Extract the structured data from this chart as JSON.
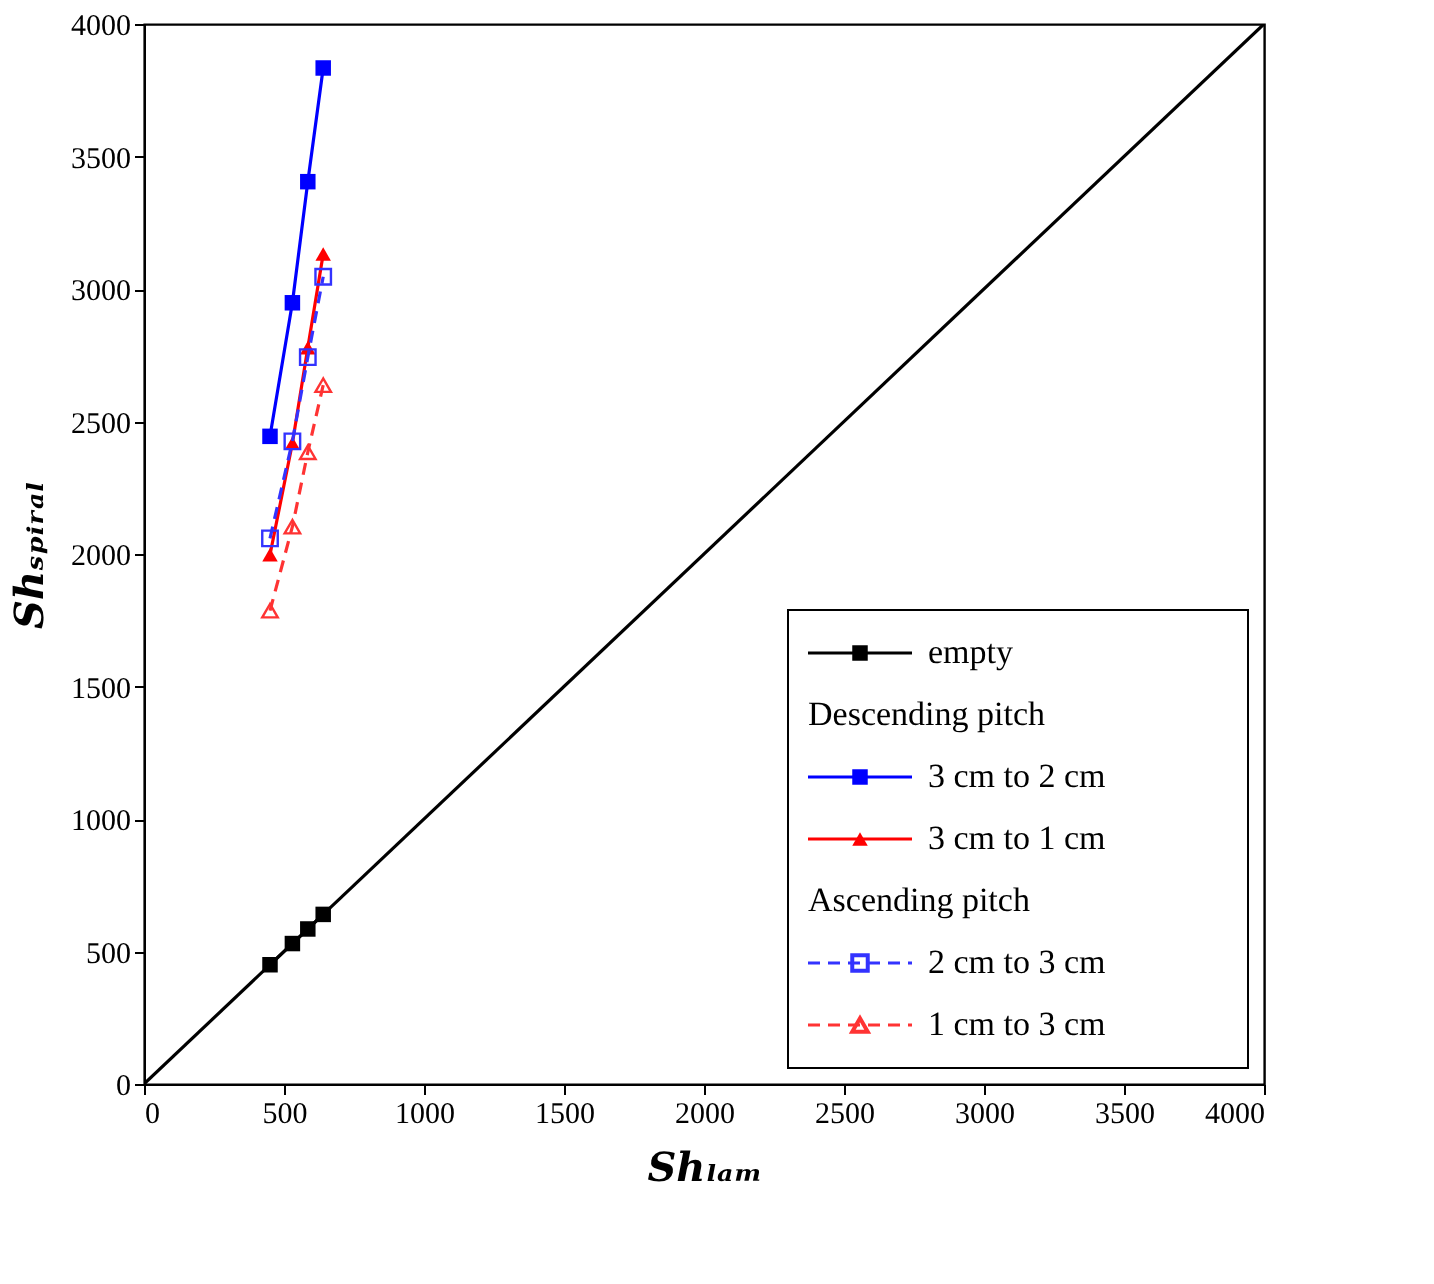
{
  "chart_data": {
    "type": "line",
    "xlabel": "Shₗₐₘ",
    "ylabel": "Shₛₚᵢᵣₐₗ",
    "xlim": [
      0,
      4000
    ],
    "ylim": [
      0,
      4000
    ],
    "xticks": [
      0,
      500,
      1000,
      1500,
      2000,
      2500,
      3000,
      3500,
      4000
    ],
    "yticks": [
      0,
      500,
      1000,
      1500,
      2000,
      2500,
      3000,
      3500,
      4000
    ],
    "grid": false,
    "legend": "bottom right",
    "annotations": [
      "Descending pitch",
      "Ascending pitch"
    ],
    "series": [
      {
        "type": "line",
        "color": "#000000",
        "x": [
          0,
          4000
        ],
        "values": [
          0,
          4000
        ],
        "marker": "none",
        "line_style": "solid"
      },
      {
        "name": "empty",
        "color": "#000000",
        "x": [
          450,
          530,
          585,
          640
        ],
        "values": [
          450,
          530,
          585,
          640
        ],
        "marker": "square",
        "line_style": "solid"
      },
      {
        "name": "3 cm to 2 cm",
        "color": "#0000ff",
        "x": [
          450,
          530,
          585,
          640
        ],
        "values": [
          2444,
          2948,
          3405,
          3834
        ],
        "marker": "square",
        "line_style": "solid"
      },
      {
        "name": "3 cm to 1 cm",
        "color": "#ff0000",
        "x": [
          450,
          530,
          585,
          640
        ],
        "values": [
          1997,
          2418,
          2778,
          3132
        ],
        "marker": "triangle",
        "line_style": "solid"
      },
      {
        "name": "2 cm to 3 cm",
        "color": "#3333ff",
        "x": [
          450,
          530,
          585,
          640
        ],
        "values": [
          2059,
          2425,
          2743,
          3046
        ],
        "marker": "square",
        "line_style": "dashed"
      },
      {
        "name": "1 cm to 3 cm",
        "color": "#ff3333",
        "x": [
          450,
          530,
          585,
          640
        ],
        "values": [
          1786,
          2103,
          2384,
          2637
        ],
        "marker": "triangle",
        "line_style": "dashed"
      }
    ]
  }
}
